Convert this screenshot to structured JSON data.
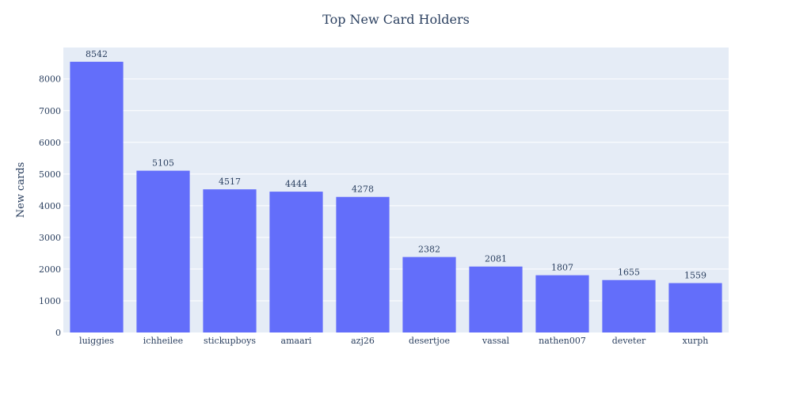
{
  "chart_data": {
    "type": "bar",
    "title": "Top New Card Holders",
    "xlabel": "",
    "ylabel": "New cards",
    "categories": [
      "luiggies",
      "ichheilee",
      "stickupboys",
      "amaari",
      "azj26",
      "desertjoe",
      "vassal",
      "nathen007",
      "deveter",
      "xurph"
    ],
    "values": [
      8542,
      5105,
      4517,
      4444,
      4278,
      2382,
      2081,
      1807,
      1655,
      1559
    ],
    "ylim": [
      0,
      8992
    ],
    "yticks": [
      0,
      1000,
      2000,
      3000,
      4000,
      5000,
      6000,
      7000,
      8000
    ],
    "grid": true,
    "legend": "none",
    "colors": {
      "bar": "#636efa",
      "plot_bg": "#e5ecf6",
      "grid": "#ffffff",
      "text": "#2a3f5f"
    }
  }
}
